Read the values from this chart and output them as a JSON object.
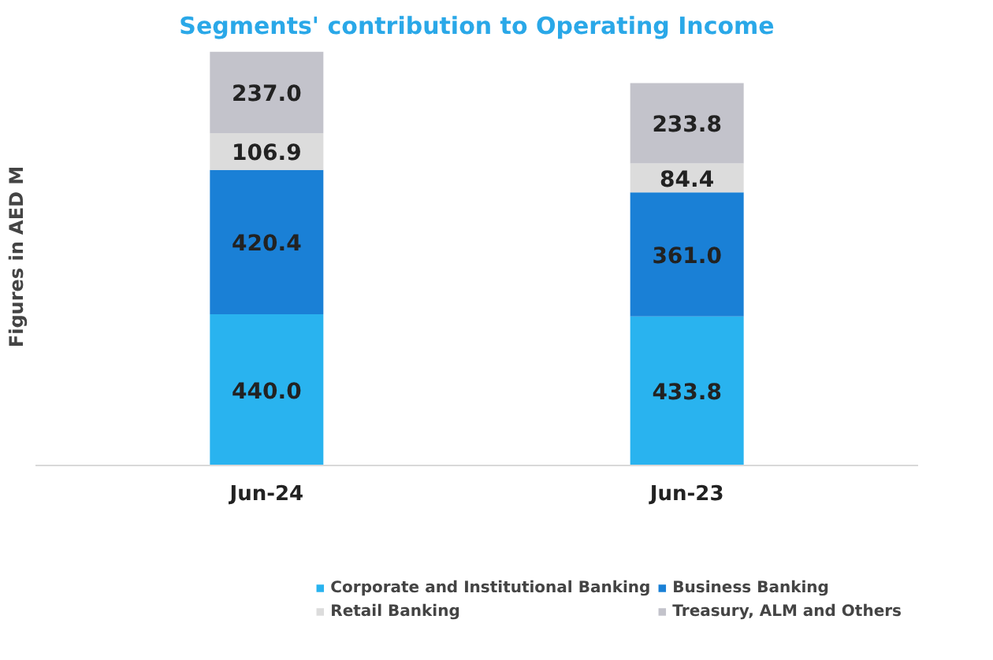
{
  "chart_data": {
    "type": "bar",
    "stacked": true,
    "title": "Segments' contribution to Operating Income",
    "ylabel": "Figures in AED M",
    "categories": [
      "Jun-24",
      "Jun-23"
    ],
    "ylim": [
      0,
      1215
    ],
    "tick_labels": "x",
    "grid": false,
    "legend": "bottom",
    "series": [
      {
        "name": "Corporate and Institutional Banking",
        "color": "#29b3ef",
        "values": [
          440.0,
          433.8
        ],
        "value_labels": [
          "440.0",
          "433.8"
        ]
      },
      {
        "name": "Business Banking",
        "color": "#1a80d6",
        "values": [
          420.4,
          361.0
        ],
        "value_labels": [
          "420.4",
          "361.0"
        ]
      },
      {
        "name": "Retail Banking",
        "color": "#dcdcdc",
        "values": [
          106.9,
          84.4
        ],
        "value_labels": [
          "106.9",
          "84.4"
        ]
      },
      {
        "name": "Treasury, ALM and Others",
        "color": "#c3c3cb",
        "values": [
          237.0,
          233.8
        ],
        "value_labels": [
          "237.0",
          "233.8"
        ]
      }
    ]
  }
}
